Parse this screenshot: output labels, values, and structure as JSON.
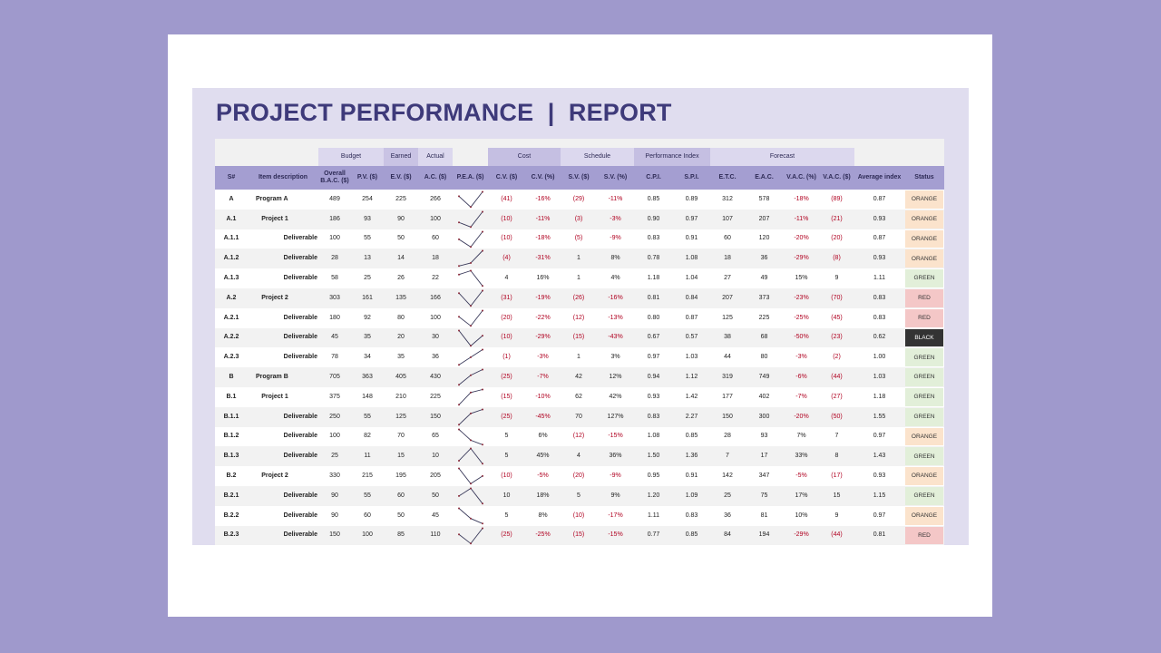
{
  "title": "PROJECT PERFORMANCE  |  REPORT",
  "groups": [
    "Budget",
    "Earned",
    "Actual",
    "Cost",
    "Schedule",
    "Performance Index",
    "Forecast"
  ],
  "headers": [
    "S#",
    "Item description",
    "Overall B.A.C. ($)",
    "P.V. ($)",
    "E.V. ($)",
    "A.C. ($)",
    "P.E.A. ($)",
    "C.V. ($)",
    "C.V. (%)",
    "S.V. ($)",
    "S.V. (%)",
    "C.P.I.",
    "S.P.I.",
    "E.T.C.",
    "E.A.C.",
    "V.A.C. (%)",
    "V.A.C. ($)",
    "Average index",
    "Status"
  ],
  "status_styles": {
    "ORANGE": {
      "bg": "#fbe3cc",
      "fg": "#333333"
    },
    "GREEN": {
      "bg": "#e2efd9",
      "fg": "#333333"
    },
    "RED": {
      "bg": "#f4c7c7",
      "fg": "#333333"
    },
    "BLACK": {
      "bg": "#333333",
      "fg": "#ffffff"
    }
  },
  "rows": [
    {
      "id": "A",
      "item": "Program A",
      "bac": 489,
      "pv": 254,
      "ev": 225,
      "ac": 266,
      "cv": "(41)",
      "cv_pct": "-16%",
      "sv": "(29)",
      "sv_pct": "-11%",
      "cpi": "0.85",
      "spi": "0.89",
      "etc": "312",
      "eac": "578",
      "vac_pct": "-18%",
      "vac": "(89)",
      "avg": "0.87",
      "status": "ORANGE"
    },
    {
      "id": "A.1",
      "item": "Project 1",
      "bac": 186,
      "pv": 93,
      "ev": 90,
      "ac": 100,
      "cv": "(10)",
      "cv_pct": "-11%",
      "sv": "(3)",
      "sv_pct": "-3%",
      "cpi": "0.90",
      "spi": "0.97",
      "etc": "107",
      "eac": "207",
      "vac_pct": "-11%",
      "vac": "(21)",
      "avg": "0.93",
      "status": "ORANGE"
    },
    {
      "id": "A.1.1",
      "item": "Deliverable",
      "bac": 100,
      "pv": 55,
      "ev": 50,
      "ac": 60,
      "cv": "(10)",
      "cv_pct": "-18%",
      "sv": "(5)",
      "sv_pct": "-9%",
      "cpi": "0.83",
      "spi": "0.91",
      "etc": "60",
      "eac": "120",
      "vac_pct": "-20%",
      "vac": "(20)",
      "avg": "0.87",
      "status": "ORANGE"
    },
    {
      "id": "A.1.2",
      "item": "Deliverable",
      "bac": 28,
      "pv": 13,
      "ev": 14,
      "ac": 18,
      "cv": "(4)",
      "cv_pct": "-31%",
      "sv": "1",
      "sv_pct": "8%",
      "cpi": "0.78",
      "spi": "1.08",
      "etc": "18",
      "eac": "36",
      "vac_pct": "-29%",
      "vac": "(8)",
      "avg": "0.93",
      "status": "ORANGE"
    },
    {
      "id": "A.1.3",
      "item": "Deliverable",
      "bac": 58,
      "pv": 25,
      "ev": 26,
      "ac": 22,
      "cv": "4",
      "cv_pct": "16%",
      "sv": "1",
      "sv_pct": "4%",
      "cpi": "1.18",
      "spi": "1.04",
      "etc": "27",
      "eac": "49",
      "vac_pct": "15%",
      "vac": "9",
      "avg": "1.11",
      "status": "GREEN"
    },
    {
      "id": "A.2",
      "item": "Project 2",
      "bac": 303,
      "pv": 161,
      "ev": 135,
      "ac": 166,
      "cv": "(31)",
      "cv_pct": "-19%",
      "sv": "(26)",
      "sv_pct": "-16%",
      "cpi": "0.81",
      "spi": "0.84",
      "etc": "207",
      "eac": "373",
      "vac_pct": "-23%",
      "vac": "(70)",
      "avg": "0.83",
      "status": "RED"
    },
    {
      "id": "A.2.1",
      "item": "Deliverable",
      "bac": 180,
      "pv": 92,
      "ev": 80,
      "ac": 100,
      "cv": "(20)",
      "cv_pct": "-22%",
      "sv": "(12)",
      "sv_pct": "-13%",
      "cpi": "0.80",
      "spi": "0.87",
      "etc": "125",
      "eac": "225",
      "vac_pct": "-25%",
      "vac": "(45)",
      "avg": "0.83",
      "status": "RED"
    },
    {
      "id": "A.2.2",
      "item": "Deliverable",
      "bac": 45,
      "pv": 35,
      "ev": 20,
      "ac": 30,
      "cv": "(10)",
      "cv_pct": "-29%",
      "sv": "(15)",
      "sv_pct": "-43%",
      "cpi": "0.67",
      "spi": "0.57",
      "etc": "38",
      "eac": "68",
      "vac_pct": "-50%",
      "vac": "(23)",
      "avg": "0.62",
      "status": "BLACK"
    },
    {
      "id": "A.2.3",
      "item": "Deliverable",
      "bac": 78,
      "pv": 34,
      "ev": 35,
      "ac": 36,
      "cv": "(1)",
      "cv_pct": "-3%",
      "sv": "1",
      "sv_pct": "3%",
      "cpi": "0.97",
      "spi": "1.03",
      "etc": "44",
      "eac": "80",
      "vac_pct": "-3%",
      "vac": "(2)",
      "avg": "1.00",
      "status": "GREEN"
    },
    {
      "id": "B",
      "item": "Program B",
      "bac": 705,
      "pv": 363,
      "ev": 405,
      "ac": 430,
      "cv": "(25)",
      "cv_pct": "-7%",
      "sv": "42",
      "sv_pct": "12%",
      "cpi": "0.94",
      "spi": "1.12",
      "etc": "319",
      "eac": "749",
      "vac_pct": "-6%",
      "vac": "(44)",
      "avg": "1.03",
      "status": "GREEN"
    },
    {
      "id": "B.1",
      "item": "Project 1",
      "bac": 375,
      "pv": 148,
      "ev": 210,
      "ac": 225,
      "cv": "(15)",
      "cv_pct": "-10%",
      "sv": "62",
      "sv_pct": "42%",
      "cpi": "0.93",
      "spi": "1.42",
      "etc": "177",
      "eac": "402",
      "vac_pct": "-7%",
      "vac": "(27)",
      "avg": "1.18",
      "status": "GREEN"
    },
    {
      "id": "B.1.1",
      "item": "Deliverable",
      "bac": 250,
      "pv": 55,
      "ev": 125,
      "ac": 150,
      "cv": "(25)",
      "cv_pct": "-45%",
      "sv": "70",
      "sv_pct": "127%",
      "cpi": "0.83",
      "spi": "2.27",
      "etc": "150",
      "eac": "300",
      "vac_pct": "-20%",
      "vac": "(50)",
      "avg": "1.55",
      "status": "GREEN"
    },
    {
      "id": "B.1.2",
      "item": "Deliverable",
      "bac": 100,
      "pv": 82,
      "ev": 70,
      "ac": 65,
      "cv": "5",
      "cv_pct": "6%",
      "sv": "(12)",
      "sv_pct": "-15%",
      "cpi": "1.08",
      "spi": "0.85",
      "etc": "28",
      "eac": "93",
      "vac_pct": "7%",
      "vac": "7",
      "avg": "0.97",
      "status": "ORANGE"
    },
    {
      "id": "B.1.3",
      "item": "Deliverable",
      "bac": 25,
      "pv": 11,
      "ev": 15,
      "ac": 10,
      "cv": "5",
      "cv_pct": "45%",
      "sv": "4",
      "sv_pct": "36%",
      "cpi": "1.50",
      "spi": "1.36",
      "etc": "7",
      "eac": "17",
      "vac_pct": "33%",
      "vac": "8",
      "avg": "1.43",
      "status": "GREEN"
    },
    {
      "id": "B.2",
      "item": "Project 2",
      "bac": 330,
      "pv": 215,
      "ev": 195,
      "ac": 205,
      "cv": "(10)",
      "cv_pct": "-5%",
      "sv": "(20)",
      "sv_pct": "-9%",
      "cpi": "0.95",
      "spi": "0.91",
      "etc": "142",
      "eac": "347",
      "vac_pct": "-5%",
      "vac": "(17)",
      "avg": "0.93",
      "status": "ORANGE"
    },
    {
      "id": "B.2.1",
      "item": "Deliverable",
      "bac": 90,
      "pv": 55,
      "ev": 60,
      "ac": 50,
      "cv": "10",
      "cv_pct": "18%",
      "sv": "5",
      "sv_pct": "9%",
      "cpi": "1.20",
      "spi": "1.09",
      "etc": "25",
      "eac": "75",
      "vac_pct": "17%",
      "vac": "15",
      "avg": "1.15",
      "status": "GREEN"
    },
    {
      "id": "B.2.2",
      "item": "Deliverable",
      "bac": 90,
      "pv": 60,
      "ev": 50,
      "ac": 45,
      "cv": "5",
      "cv_pct": "8%",
      "sv": "(10)",
      "sv_pct": "-17%",
      "cpi": "1.11",
      "spi": "0.83",
      "etc": "36",
      "eac": "81",
      "vac_pct": "10%",
      "vac": "9",
      "avg": "0.97",
      "status": "ORANGE"
    },
    {
      "id": "B.2.3",
      "item": "Deliverable",
      "bac": 150,
      "pv": 100,
      "ev": 85,
      "ac": 110,
      "cv": "(25)",
      "cv_pct": "-25%",
      "sv": "(15)",
      "sv_pct": "-15%",
      "cpi": "0.77",
      "spi": "0.85",
      "etc": "84",
      "eac": "194",
      "vac_pct": "-29%",
      "vac": "(44)",
      "avg": "0.81",
      "status": "RED"
    }
  ]
}
